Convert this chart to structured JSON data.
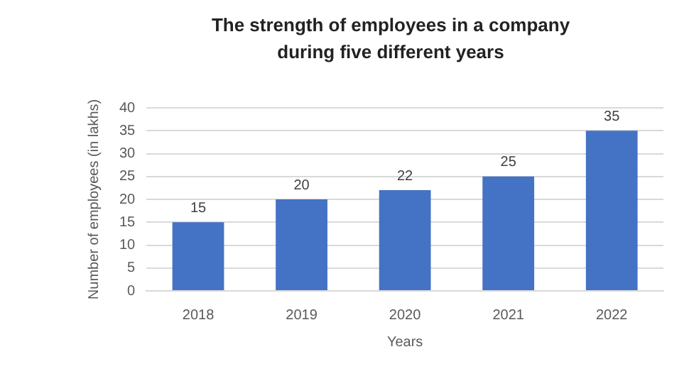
{
  "chart_data": {
    "type": "bar",
    "title": "The strength of employees in a company during five different years",
    "categories": [
      "2018",
      "2019",
      "2020",
      "2021",
      "2022"
    ],
    "values": [
      15,
      20,
      22,
      25,
      35
    ],
    "color": "#4472c4",
    "xlabel": "Years",
    "ylabel": "Number of employees (in lakhs)",
    "ylim": [
      0,
      40
    ],
    "yticks": [
      0,
      5,
      10,
      15,
      20,
      25,
      30,
      35,
      40
    ],
    "grid": "y",
    "data_labels": true,
    "legend": false
  }
}
